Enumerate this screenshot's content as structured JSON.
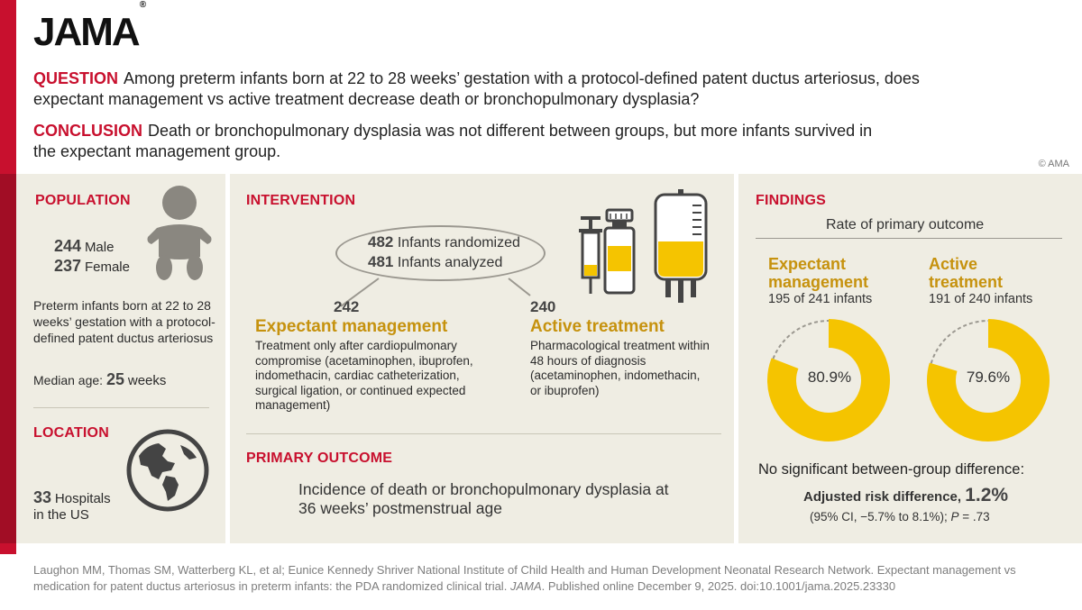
{
  "logo": "JAMA",
  "question": {
    "label": "QUESTION",
    "text": "Among preterm infants born at 22 to 28 weeks’ gestation with a protocol-defined patent ductus arteriosus, does expectant management vs active treatment decrease death or bronchopulmonary dysplasia?"
  },
  "conclusion": {
    "label": "CONCLUSION",
    "text": "Death or bronchopulmonary dysplasia was not different between groups, but more infants survived in the expectant management group."
  },
  "copyright": "© AMA",
  "population": {
    "title": "POPULATION",
    "male_n": "244",
    "male_label": "Male",
    "female_n": "237",
    "female_label": "Female",
    "description": "Preterm infants born at 22 to 28 weeks’ gestation with a protocol-defined patent ductus arteriosus",
    "median_label": "Median age:",
    "median_value": "25",
    "median_unit": "weeks"
  },
  "location": {
    "title": "LOCATION",
    "count": "33",
    "label_1": "Hospitals",
    "label_2": "in the US"
  },
  "intervention": {
    "title": "INTERVENTION",
    "randomized_n": "482",
    "randomized_label": "Infants randomized",
    "analyzed_n": "481",
    "analyzed_label": "Infants analyzed",
    "arm1_n": "242",
    "arm1_title": "Expectant management",
    "arm1_desc": "Treatment only after cardiopulmonary compromise (acetaminophen, ibuprofen, indomethacin, cardiac catheterization, surgical ligation, or continued expected management)",
    "arm2_n": "240",
    "arm2_title": "Active treatment",
    "arm2_desc": "Pharmacological treatment within 48 hours of diagnosis (acetaminophen, indomethacin, or ibuprofen)"
  },
  "primary_outcome": {
    "title": "PRIMARY OUTCOME",
    "text": "Incidence of death or bronchopulmonary dysplasia at 36 weeks’ postmenstrual age"
  },
  "findings": {
    "title": "FINDINGS",
    "subtitle": "Rate of primary outcome",
    "group1_title_1": "Expectant",
    "group1_title_2": "management",
    "group1_sub": "195 of 241 infants",
    "group1_pct": "80.9%",
    "group1_value": 80.9,
    "group2_title_1": "Active",
    "group2_title_2": "treatment",
    "group2_sub": "191 of 240 infants",
    "group2_pct": "79.6%",
    "group2_value": 79.6,
    "nsd": "No significant between-group difference:",
    "ard_label": "Adjusted risk difference,",
    "ard_value": "1.2%",
    "ci_1": "(95% CI, −5.7% to 8.1%);",
    "ci_p": "P",
    "ci_2": "= .73"
  },
  "colors": {
    "accent_red": "#c8102e",
    "gold": "#c6920e",
    "donut_yellow": "#f5c400",
    "panel_bg": "#efede3"
  },
  "citation": {
    "text_1": "Laughon MM, Thomas SM, Watterberg KL, et al; Eunice Kennedy Shriver National Institute of Child Health and Human Development Neonatal Research Network. Expectant management vs medication for patent ductus arteriosus in preterm infants: the PDA randomized clinical trial.",
    "journal": "JAMA",
    "text_2": ". Published online December 9, 2025. doi:10.1001/jama.2025.23330"
  }
}
